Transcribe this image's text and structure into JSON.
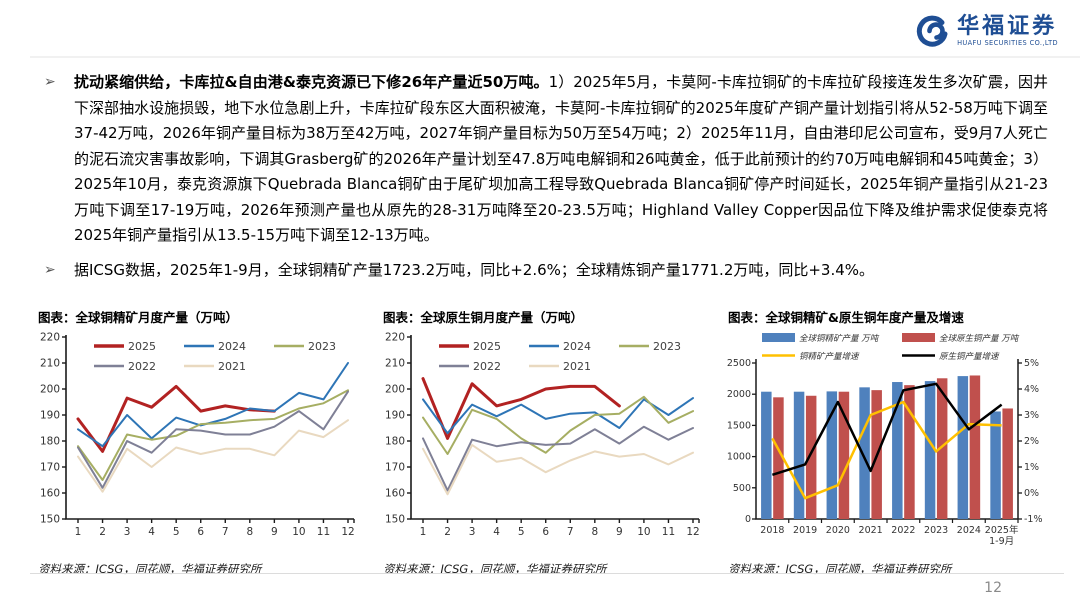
{
  "header": {
    "logo_cn": "华福证券",
    "logo_en": "HUAFU SECURITIES CO.,LTD",
    "logo_color": "#1f4e94"
  },
  "bullets": [
    {
      "marker": "➢",
      "bold": "扰动紧缩供给，卡库拉&自由港&泰克资源已下修26年产量近50万吨。",
      "text": "1）2025年5月，卡莫阿-卡库拉铜矿的卡库拉矿段接连发生多次矿震，因井下深部抽水设施损毁，地下水位急剧上升，卡库拉矿段东区大面积被淹，卡莫阿-卡库拉铜矿的2025年度矿产铜产量计划指引将从52-58万吨下调至37-42万吨，2026年铜产量目标为38万至42万吨，2027年铜产量目标为50万至54万吨；2）2025年11月，自由港印尼公司宣布，受9月7人死亡的泥石流灾害事故影响，下调其Grasberg矿的2026年产量计划至47.8万吨电解铜和26吨黄金，低于此前预计的约70万吨电解铜和45吨黄金；3）2025年10月，泰克资源旗下Quebrada Blanca铜矿由于尾矿坝加高工程导致Quebrada Blanca铜矿停产时间延长，2025年铜产量指引从21-23万吨下调至17-19万吨，2026年预测产量也从原先的28-31万吨降至20-23.5万吨；Highland Valley Copper因品位下降及维护需求促使泰克将2025年铜产量指引从13.5-15万吨下调至12-13万吨。"
    },
    {
      "marker": "➢",
      "bold": "",
      "text": "据ICSG数据，2025年1-9月，全球铜精矿产量1723.2万吨，同比+2.6%；全球精炼铜产量1771.2万吨，同比+3.4%。"
    }
  ],
  "page_number": "12",
  "chart_data": [
    {
      "type": "line",
      "title": "图表：全球铜精矿月度产量（万吨）",
      "source": "资料来源：ICSG，同花顺，华福证券研究所",
      "x": [
        1,
        2,
        3,
        4,
        5,
        6,
        7,
        8,
        9,
        10,
        11,
        12
      ],
      "ylim": [
        150,
        220
      ],
      "ytick_step": 10,
      "legend_position": "top-inside-two-rows",
      "grid": false,
      "series": [
        {
          "name": "2025",
          "color": "#b22222",
          "values": [
            188.5,
            176,
            196.5,
            193,
            201,
            191.5,
            193.5,
            192,
            191.5
          ]
        },
        {
          "name": "2024",
          "color": "#2e75b6",
          "values": [
            184.5,
            178,
            190,
            181,
            189,
            186,
            188.5,
            192.5,
            191.5,
            198.5,
            196,
            210
          ]
        },
        {
          "name": "2023",
          "color": "#a6ae63",
          "values": [
            178,
            165,
            182.5,
            180.5,
            182,
            186.5,
            187,
            188,
            188.5,
            192.5,
            194.5,
            199.5
          ]
        },
        {
          "name": "2022",
          "color": "#7f8096",
          "values": [
            177.5,
            162,
            180,
            175.5,
            184.5,
            184,
            182.5,
            182.5,
            185.5,
            191.5,
            184.5,
            199
          ]
        },
        {
          "name": "2021",
          "color": "#e9d9c0",
          "values": [
            174,
            160.5,
            177,
            170,
            177.5,
            175,
            177,
            177,
            174.5,
            184,
            181.5,
            188
          ]
        }
      ]
    },
    {
      "type": "line",
      "title": "图表：全球原生铜月度产量（万吨）",
      "source": "资料来源：ICSG，同花顺，华福证券研究所",
      "x": [
        1,
        2,
        3,
        4,
        5,
        6,
        7,
        8,
        9,
        10,
        11,
        12
      ],
      "ylim": [
        150,
        220
      ],
      "ytick_step": 10,
      "legend_position": "top-inside-two-rows",
      "grid": false,
      "series": [
        {
          "name": "2025",
          "color": "#b22222",
          "values": [
            204,
            181,
            202,
            193.5,
            196,
            200,
            201,
            201,
            193.5
          ]
        },
        {
          "name": "2024",
          "color": "#2e75b6",
          "values": [
            196,
            183,
            194,
            189.5,
            194,
            188.5,
            190.5,
            191,
            185,
            196,
            190,
            196.5
          ]
        },
        {
          "name": "2023",
          "color": "#a6ae63",
          "values": [
            189,
            175,
            192,
            188.5,
            181,
            175.5,
            184,
            190,
            190.5,
            197,
            187,
            191.5
          ]
        },
        {
          "name": "2022",
          "color": "#7f8096",
          "values": [
            181,
            161,
            180.5,
            178,
            179.5,
            178.5,
            179,
            184.5,
            179,
            185.5,
            180.5,
            185
          ]
        },
        {
          "name": "2021",
          "color": "#e9d9c0",
          "values": [
            177,
            159.5,
            178.5,
            172,
            173.5,
            168,
            172.5,
            176,
            174,
            175,
            171,
            175.5
          ]
        }
      ]
    },
    {
      "type": "bar-line",
      "title": "图表：全球铜精矿&原生铜年度产量及增速",
      "source": "资料来源：ICSG，同花顺，华福证券研究所",
      "categories": [
        "2018",
        "2019",
        "2020",
        "2021",
        "2022",
        "2023",
        "2024",
        "2025年\n1-9月"
      ],
      "left_ylim": [
        0,
        2500
      ],
      "left_ticks": [
        0,
        500,
        1000,
        1500,
        2000,
        2500
      ],
      "right_ylim": [
        -1,
        5
      ],
      "right_ticks": [
        "5%",
        "4%",
        "3%",
        "2%",
        "1%",
        "0%",
        "-1%"
      ],
      "bar_series": [
        {
          "name": "全球铜精矿产量 万吨",
          "color": "#4f81bd",
          "values": [
            2040,
            2040,
            2045,
            2110,
            2195,
            2210,
            2290,
            1723.2
          ]
        },
        {
          "name": "全球原生铜产量 万吨",
          "color": "#c0504d",
          "values": [
            1950,
            1975,
            2040,
            2065,
            2145,
            2255,
            2300,
            1771.2
          ]
        }
      ],
      "line_series": [
        {
          "name": "铜精矿产量增速",
          "color": "#ffc000",
          "values": [
            2.1,
            -0.2,
            0.3,
            3.0,
            3.5,
            1.6,
            2.65,
            2.6
          ]
        },
        {
          "name": "原生铜产量增速",
          "color": "#000000",
          "values": [
            0.7,
            1.1,
            3.5,
            0.85,
            3.95,
            4.2,
            2.45,
            3.4
          ]
        }
      ]
    }
  ]
}
